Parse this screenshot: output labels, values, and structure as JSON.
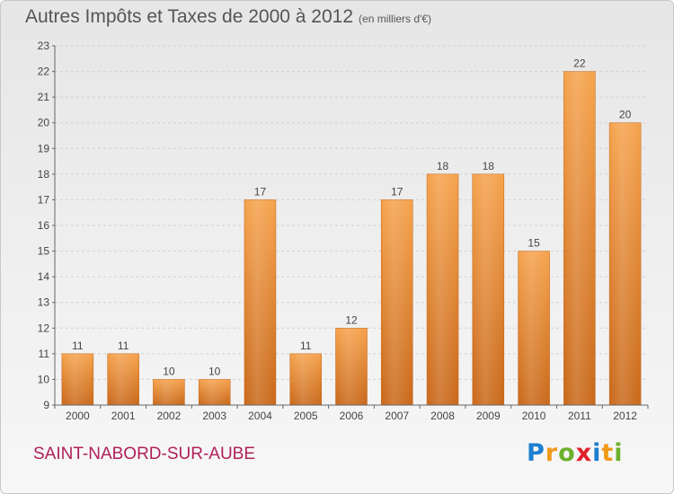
{
  "title": {
    "main": "Autres Impôts et Taxes de 2000 à 2012",
    "unit": "(en milliers d'€)"
  },
  "commune": "SAINT-NABORD-SUR-AUBE",
  "logo": {
    "letters": [
      "P",
      "r",
      "o",
      "x",
      "i",
      "t",
      "i"
    ],
    "colors": [
      "#1c7fd1",
      "#f09a1a",
      "#6cb12c",
      "#e0202a",
      "#1c7fd1",
      "#f09a1a",
      "#6cb12c"
    ]
  },
  "chart_data": {
    "type": "bar",
    "title": "Autres Impôts et Taxes de 2000 à 2012",
    "xlabel": "",
    "ylabel": "",
    "categories": [
      "2000",
      "2001",
      "2002",
      "2003",
      "2004",
      "2005",
      "2006",
      "2007",
      "2008",
      "2009",
      "2010",
      "2011",
      "2012"
    ],
    "values": [
      11,
      11,
      10,
      10,
      17,
      11,
      12,
      17,
      18,
      18,
      15,
      22,
      20
    ],
    "value_labels": [
      "11",
      "11",
      "10",
      "10",
      "17",
      "11",
      "12",
      "17",
      "18",
      "18",
      "15",
      "22",
      "20"
    ],
    "ylim": [
      9,
      23
    ],
    "yticks": [
      "9",
      "10",
      "11",
      "12",
      "13",
      "14",
      "15",
      "16",
      "17",
      "18",
      "19",
      "20",
      "21",
      "22",
      "23"
    ],
    "grid": true,
    "bar_color": "#f0922e",
    "legend": "none"
  }
}
